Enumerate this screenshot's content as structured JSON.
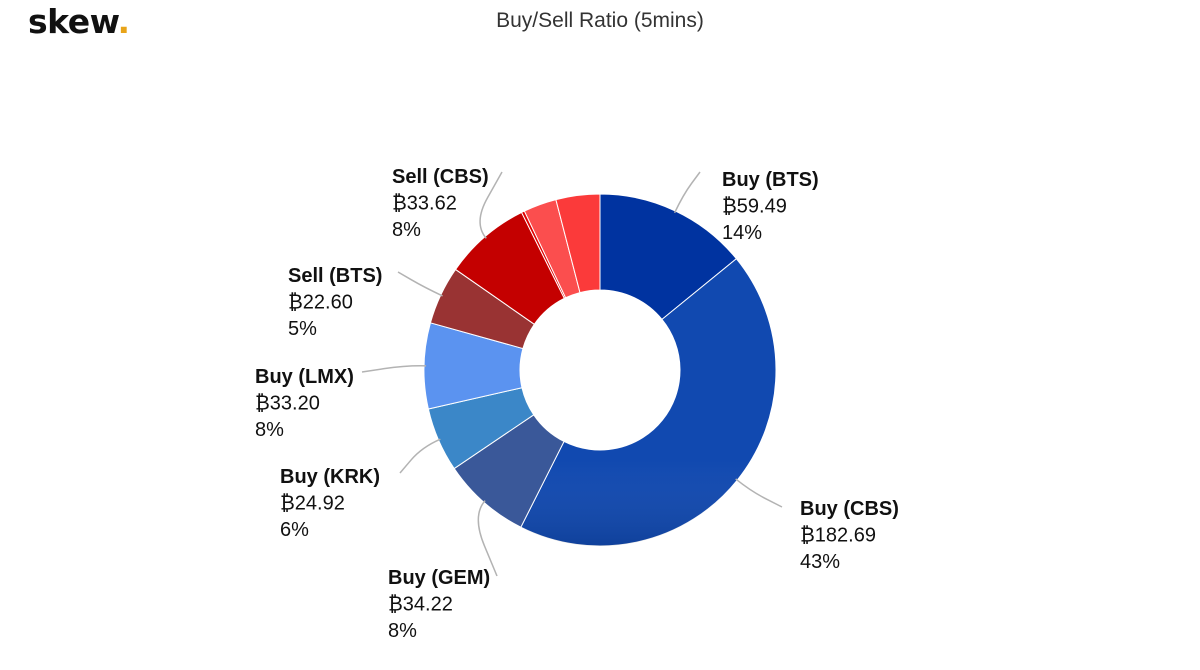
{
  "brand": {
    "logo_text": "skew",
    "logo_dot": ".",
    "accent": "#e8a419"
  },
  "chart_data": {
    "type": "pie",
    "donut": true,
    "title": "Buy/Sell Ratio (5mins)",
    "currency_symbol": "₿",
    "legend": "none",
    "slices": [
      {
        "label": "Buy (BTS)",
        "value": 59.49,
        "value_text": "₿59.49",
        "percent_text": "14%",
        "color": "#0033a0",
        "labeled": true
      },
      {
        "label": "Buy (CBS)",
        "value": 182.69,
        "value_text": "₿182.69",
        "percent_text": "43%",
        "color": "#1149b0",
        "labeled": true
      },
      {
        "label": "Buy (GEM)",
        "value": 34.22,
        "value_text": "₿34.22",
        "percent_text": "8%",
        "color": "#3a5899",
        "labeled": true
      },
      {
        "label": "Buy (KRK)",
        "value": 24.92,
        "value_text": "₿24.92",
        "percent_text": "6%",
        "color": "#3b87c8",
        "labeled": true
      },
      {
        "label": "Buy (LMX)",
        "value": 33.2,
        "value_text": "₿33.20",
        "percent_text": "8%",
        "color": "#5b93f0",
        "labeled": true
      },
      {
        "label": "Sell (BTS)",
        "value": 22.6,
        "value_text": "₿22.60",
        "percent_text": "5%",
        "color": "#993333",
        "labeled": true
      },
      {
        "label": "Sell (CBS)",
        "value": 33.62,
        "value_text": "₿33.62",
        "percent_text": "8%",
        "color": "#c40000",
        "labeled": true
      },
      {
        "label": "",
        "value": 1.2,
        "value_text": "",
        "percent_text": "",
        "color": "#e00000",
        "labeled": false
      },
      {
        "label": "",
        "value": 12.8,
        "value_text": "",
        "percent_text": "",
        "color": "#fb4e4e",
        "labeled": false
      },
      {
        "label": "",
        "value": 17.0,
        "value_text": "",
        "percent_text": "",
        "color": "#fb3a3a",
        "labeled": false
      }
    ]
  }
}
